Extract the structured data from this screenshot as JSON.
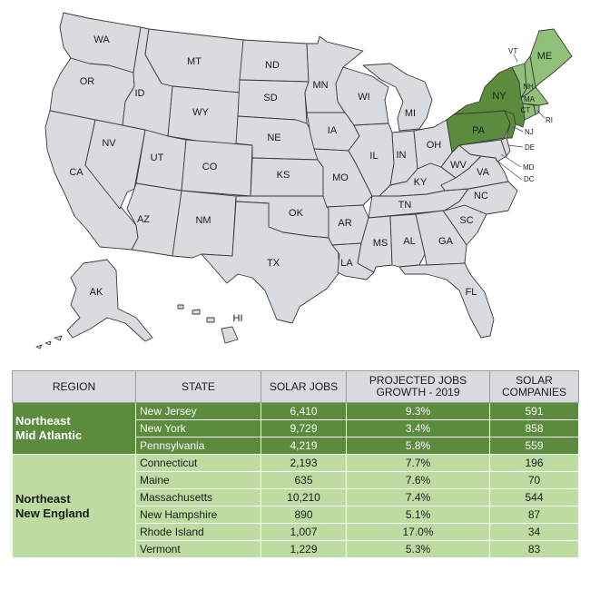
{
  "map": {
    "colors": {
      "default": "#d9dcde",
      "mid_atlantic": "#5b8b3c",
      "new_england": "#8fc278"
    },
    "labels": {
      "WA": "WA",
      "OR": "OR",
      "CA": "CA",
      "NV": "NV",
      "ID": "ID",
      "MT": "MT",
      "WY": "WY",
      "UT": "UT",
      "AZ": "AZ",
      "CO": "CO",
      "NM": "NM",
      "ND": "ND",
      "SD": "SD",
      "NE": "NE",
      "KS": "KS",
      "OK": "OK",
      "TX": "TX",
      "MN": "MN",
      "IA": "IA",
      "MO": "MO",
      "AR": "AR",
      "LA": "LA",
      "WI": "WI",
      "IL": "IL",
      "MI": "MI",
      "IN": "IN",
      "OH": "OH",
      "KY": "KY",
      "TN": "TN",
      "MS": "MS",
      "AL": "AL",
      "GA": "GA",
      "FL": "FL",
      "SC": "SC",
      "NC": "NC",
      "VA": "VA",
      "WV": "WV",
      "PA": "PA",
      "NY": "NY",
      "VT": "VT",
      "NH": "NH",
      "ME": "ME",
      "MA": "MA",
      "CT": "CT",
      "RI": "RI",
      "NJ": "NJ",
      "DE": "DE",
      "MD": "MD",
      "DC": "DC",
      "AK": "AK",
      "HI": "HI"
    }
  },
  "table": {
    "headers": {
      "region": "REGION",
      "state": "STATE",
      "jobs": "SOLAR JOBS",
      "growth_line1": "PROJECTED JOBS",
      "growth_line2": "GROWTH - 2019",
      "companies_line1": "SOLAR",
      "companies_line2": "COMPANIES"
    },
    "groups": [
      {
        "region_line1": "Northeast",
        "region_line2": "Mid Atlantic",
        "rows": [
          {
            "state": "New Jersey",
            "jobs": "6,410",
            "growth": "9.3%",
            "companies": "591"
          },
          {
            "state": "New York",
            "jobs": "9,729",
            "growth": "3.4%",
            "companies": "858"
          },
          {
            "state": "Pennsylvania",
            "jobs": "4,219",
            "growth": "5.8%",
            "companies": "559"
          }
        ]
      },
      {
        "region_line1": "Northeast",
        "region_line2": "New England",
        "rows": [
          {
            "state": "Connecticut",
            "jobs": "2,193",
            "growth": "7.7%",
            "companies": "196"
          },
          {
            "state": "Maine",
            "jobs": "635",
            "growth": "7.6%",
            "companies": "70"
          },
          {
            "state": "Massachusetts",
            "jobs": "10,210",
            "growth": "7.4%",
            "companies": "544"
          },
          {
            "state": "New Hampshire",
            "jobs": "890",
            "growth": "5.1%",
            "companies": "87"
          },
          {
            "state": "Rhode Island",
            "jobs": "1,007",
            "growth": "17.0%",
            "companies": "34"
          },
          {
            "state": "Vermont",
            "jobs": "1,229",
            "growth": "5.3%",
            "companies": "83"
          }
        ]
      }
    ]
  }
}
